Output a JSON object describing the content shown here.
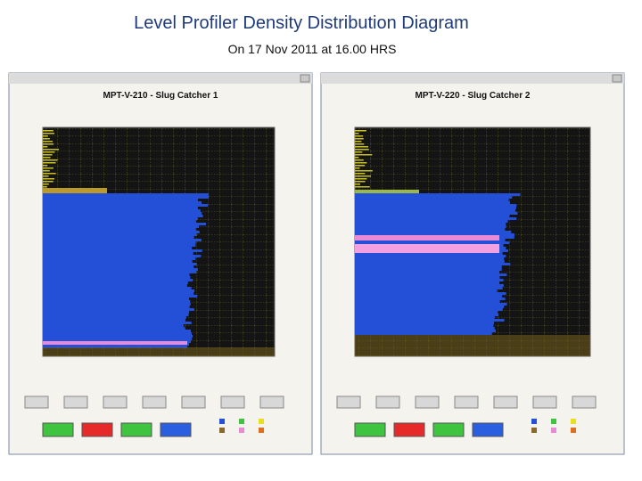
{
  "slide": {
    "title": "Level Profiler Density Distribution Diagram",
    "subtitle": "On 17 Nov 2011 at 16.00 HRS"
  },
  "windows": [
    {
      "title": "MPT-V-210 - Slug Catcher 1"
    },
    {
      "title": "MPT-V-220 - Slug Catcher 2"
    }
  ]
}
